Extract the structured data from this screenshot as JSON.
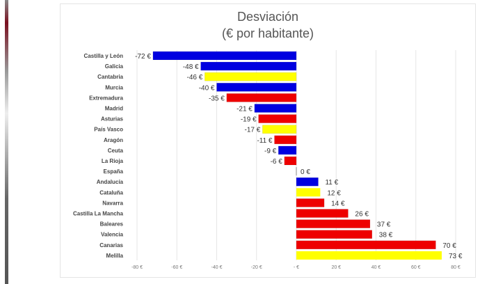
{
  "chart_data": {
    "type": "bar",
    "orientation": "horizontal",
    "title": "Desviación",
    "subtitle": "(€ por habitante)",
    "categories": [
      "Castilla y León",
      "Galicia",
      "Cantabria",
      "Murcia",
      "Extremadura",
      "Madrid",
      "Asturias",
      "País Vasco",
      "Aragón",
      "Ceuta",
      "La Rioja",
      "España",
      "Andalucía",
      "Cataluña",
      "Navarra",
      "Castilla La Mancha",
      "Baleares",
      "Valencia",
      "Canarias",
      "Melilla"
    ],
    "values": [
      -72,
      -48,
      -46,
      -40,
      -35,
      -21,
      -19,
      -17,
      -11,
      -9,
      -6,
      0,
      11,
      12,
      14,
      26,
      37,
      38,
      70,
      73
    ],
    "data_labels": [
      "-72 €",
      "-48 €",
      "-46 €",
      "-40 €",
      "-35 €",
      "-21 €",
      "-19 €",
      "-17 €",
      "-11 €",
      "-9 €",
      "-6 €",
      "0 €",
      "11 €",
      "12 €",
      "14 €",
      "26 €",
      "37 €",
      "38 €",
      "70 €",
      "73 €"
    ],
    "bar_colors": [
      "#0000e0",
      "#0000e0",
      "#ffff00",
      "#0000e0",
      "#ee0000",
      "#0000e0",
      "#ee0000",
      "#ffff00",
      "#ee0000",
      "#0000e0",
      "#ee0000",
      "#888888",
      "#0000e0",
      "#ffff00",
      "#ee0000",
      "#ee0000",
      "#ee0000",
      "#ee0000",
      "#ee0000",
      "#ffff00"
    ],
    "xlim": [
      -80,
      80
    ],
    "x_ticks": [
      -80,
      -60,
      -40,
      -20,
      0,
      20,
      40,
      60,
      80
    ],
    "x_tick_labels": [
      "-80 €",
      "-60 €",
      "-40 €",
      "-20 €",
      "- €",
      "20 €",
      "40 €",
      "60 €",
      "80 €"
    ],
    "grid": true,
    "legend": "none"
  }
}
